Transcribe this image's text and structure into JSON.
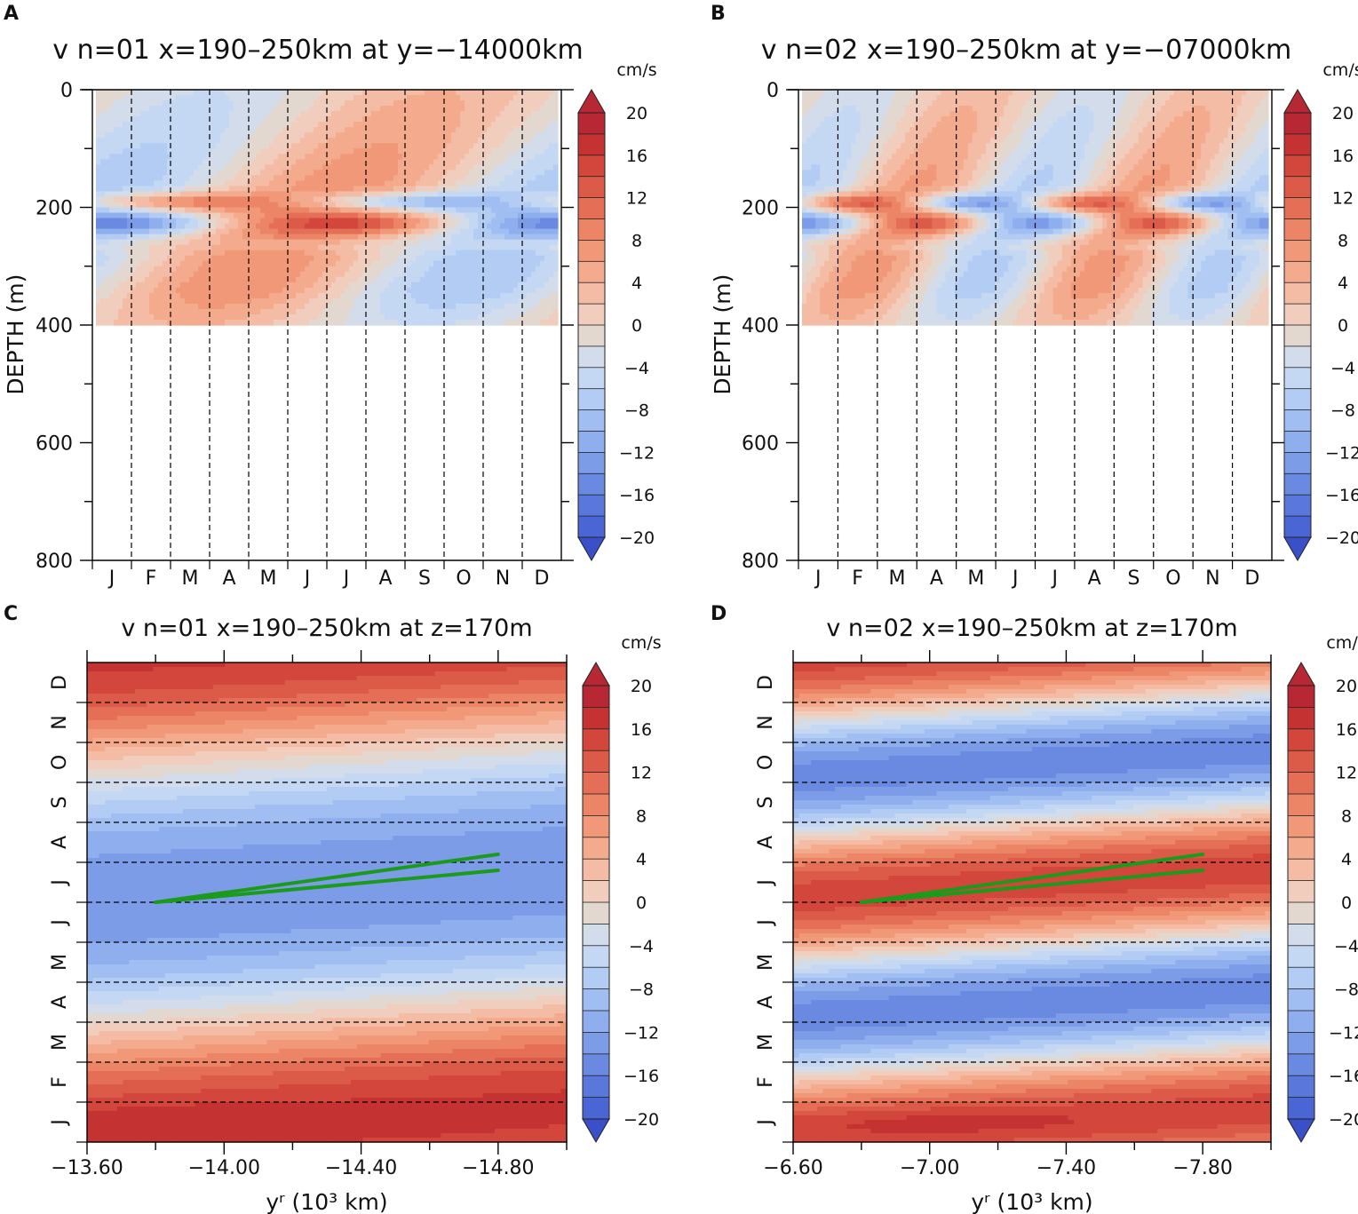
{
  "colorbar": {
    "unit": "cm/s",
    "levels": [
      -20,
      -18,
      -16,
      -14,
      -12,
      -10,
      -8,
      -6,
      -4,
      -2,
      0,
      2,
      4,
      6,
      8,
      10,
      12,
      14,
      16,
      18,
      20
    ],
    "labels": [
      "20",
      "16",
      "12",
      "8",
      "4",
      "0",
      "-4",
      "-8",
      "-12",
      "-16",
      "-20"
    ],
    "colors": [
      "#3a50c8",
      "#4a66d4",
      "#5a78dc",
      "#6a8ae2",
      "#7c9ce8",
      "#8eaeee",
      "#a0bef2",
      "#b2ccf4",
      "#c4d8f4",
      "#d2dcea",
      "#e2d8d0",
      "#f0cdbc",
      "#f4bca4",
      "#f4aa8c",
      "#f09878",
      "#ec8466",
      "#e46e56",
      "#dc5a48",
      "#d2463c",
      "#c43232",
      "#b82834"
    ]
  },
  "chart_data": [
    {
      "panel": "A",
      "type": "heatmap",
      "title": "v n=01 x=190–250km at y=−14000km",
      "xlabel": "",
      "ylabel": "DEPTH (m)",
      "x_ticklabels": [
        "J",
        "F",
        "M",
        "A",
        "M",
        "J",
        "J",
        "A",
        "S",
        "O",
        "N",
        "D"
      ],
      "y_ticks": [
        0,
        200,
        400,
        600,
        800
      ],
      "y_ticklabels": [
        "0",
        "200",
        "400",
        "600",
        "800"
      ],
      "ylim": [
        0,
        800
      ],
      "data_depth_max": 400,
      "wave_mode": 1,
      "colorbar_unit": "cm/s"
    },
    {
      "panel": "B",
      "type": "heatmap",
      "title": "v n=02 x=190–250km at y=−07000km",
      "xlabel": "",
      "ylabel": "DEPTH (m)",
      "x_ticklabels": [
        "J",
        "F",
        "M",
        "A",
        "M",
        "J",
        "J",
        "A",
        "S",
        "O",
        "N",
        "D"
      ],
      "y_ticks": [
        0,
        200,
        400,
        600,
        800
      ],
      "y_ticklabels": [
        "0",
        "200",
        "400",
        "600",
        "800"
      ],
      "ylim": [
        0,
        800
      ],
      "data_depth_max": 400,
      "wave_mode": 2,
      "colorbar_unit": "cm/s"
    },
    {
      "panel": "C",
      "type": "heatmap",
      "title": "v n=01 x=190–250km at z=170m",
      "xlabel": "yʳ (10³ km)",
      "ylabel": "",
      "x_ticks": [
        -13.6,
        -14.0,
        -14.4,
        -14.8
      ],
      "x_ticklabels": [
        "−13.60",
        "−14.00",
        "−14.40",
        "−14.80"
      ],
      "xlim": [
        -13.6,
        -15.0
      ],
      "y_ticklabels": [
        "J",
        "F",
        "M",
        "A",
        "M",
        "J",
        "J",
        "A",
        "S",
        "O",
        "N",
        "D"
      ],
      "wave_mode": 1,
      "green_lines": [
        {
          "from": [
            -13.8,
            6.0
          ],
          "to": [
            -14.8,
            7.2
          ]
        },
        {
          "from": [
            -13.8,
            6.0
          ],
          "to": [
            -14.8,
            6.8
          ]
        }
      ],
      "colorbar_unit": "cm/s"
    },
    {
      "panel": "D",
      "type": "heatmap",
      "title": "v n=02 x=190–250km at z=170m",
      "xlabel": "yʳ (10³ km)",
      "ylabel": "",
      "x_ticks": [
        -6.6,
        -7.0,
        -7.4,
        -7.8
      ],
      "x_ticklabels": [
        "−6.60",
        "−7.00",
        "−7.40",
        "−7.80"
      ],
      "xlim": [
        -6.6,
        -8.0
      ],
      "y_ticklabels": [
        "J",
        "F",
        "M",
        "A",
        "M",
        "J",
        "J",
        "A",
        "S",
        "O",
        "N",
        "D"
      ],
      "wave_mode": 2,
      "green_lines": [
        {
          "from": [
            -6.8,
            6.0
          ],
          "to": [
            -7.8,
            7.2
          ]
        },
        {
          "from": [
            -6.8,
            6.0
          ],
          "to": [
            -7.8,
            6.8
          ]
        }
      ],
      "colorbar_unit": "cm/s"
    }
  ]
}
